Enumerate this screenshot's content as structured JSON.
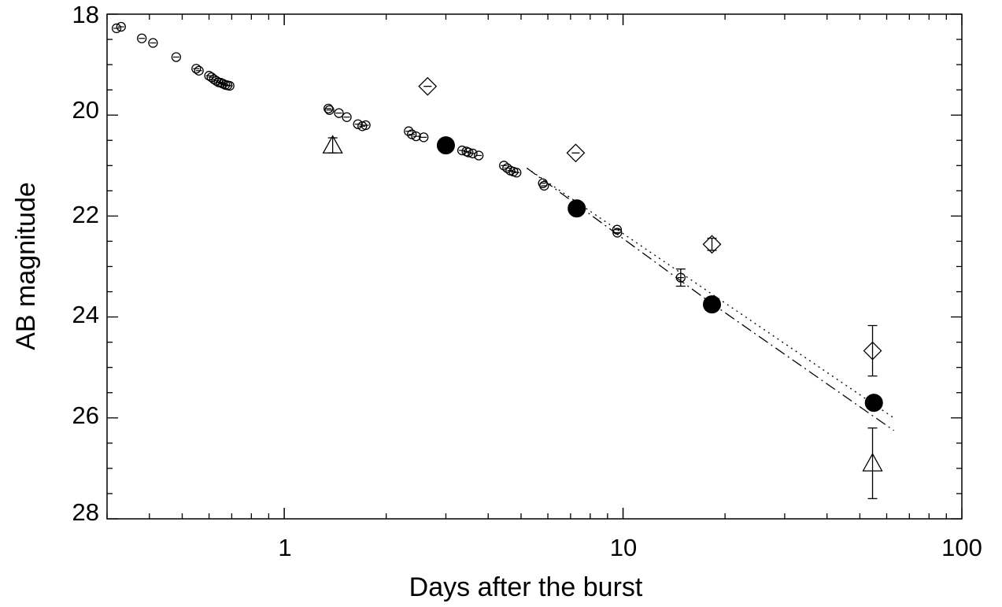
{
  "chart_data": {
    "type": "scatter",
    "title": "",
    "xlabel": "Days after the burst",
    "ylabel": "AB magnitude",
    "x_scale": "log",
    "xlim": [
      0.3,
      100
    ],
    "ylim": [
      28.0,
      18.0
    ],
    "y_inverted": true,
    "x_tick_labels": [
      "1",
      "10",
      "100"
    ],
    "y_tick_labels": [
      "18",
      "20",
      "22",
      "24",
      "26",
      "28"
    ],
    "grid": false,
    "legend": "none",
    "series": [
      {
        "marker": "small-open-circle",
        "points": [
          {
            "x": 0.32,
            "y": 18.28
          },
          {
            "x": 0.33,
            "y": 18.25
          },
          {
            "x": 0.38,
            "y": 18.48
          },
          {
            "x": 0.41,
            "y": 18.57
          },
          {
            "x": 0.48,
            "y": 18.85
          },
          {
            "x": 0.55,
            "y": 19.08
          },
          {
            "x": 0.56,
            "y": 19.12
          },
          {
            "x": 0.6,
            "y": 19.22
          },
          {
            "x": 0.61,
            "y": 19.25
          },
          {
            "x": 0.62,
            "y": 19.29
          },
          {
            "x": 0.63,
            "y": 19.32
          },
          {
            "x": 0.64,
            "y": 19.35
          },
          {
            "x": 0.65,
            "y": 19.36
          },
          {
            "x": 0.66,
            "y": 19.38
          },
          {
            "x": 0.67,
            "y": 19.4
          },
          {
            "x": 0.68,
            "y": 19.41
          },
          {
            "x": 0.69,
            "y": 19.42
          },
          {
            "x": 1.35,
            "y": 19.87
          },
          {
            "x": 1.36,
            "y": 19.9
          },
          {
            "x": 1.45,
            "y": 19.96
          },
          {
            "x": 1.53,
            "y": 20.04
          },
          {
            "x": 1.65,
            "y": 20.18
          },
          {
            "x": 1.7,
            "y": 20.22
          },
          {
            "x": 1.74,
            "y": 20.2
          },
          {
            "x": 2.33,
            "y": 20.32
          },
          {
            "x": 2.38,
            "y": 20.38
          },
          {
            "x": 2.45,
            "y": 20.42
          },
          {
            "x": 2.58,
            "y": 20.44
          },
          {
            "x": 3.35,
            "y": 20.7
          },
          {
            "x": 3.45,
            "y": 20.72
          },
          {
            "x": 3.5,
            "y": 20.74
          },
          {
            "x": 3.6,
            "y": 20.76
          },
          {
            "x": 3.75,
            "y": 20.8
          },
          {
            "x": 4.45,
            "y": 21.0
          },
          {
            "x": 4.55,
            "y": 21.05
          },
          {
            "x": 4.65,
            "y": 21.1
          },
          {
            "x": 4.75,
            "y": 21.12
          },
          {
            "x": 4.85,
            "y": 21.14
          },
          {
            "x": 5.8,
            "y": 21.35
          },
          {
            "x": 5.85,
            "y": 21.4
          },
          {
            "x": 9.6,
            "y": 22.27
          },
          {
            "x": 9.62,
            "y": 22.33
          },
          {
            "x": 14.8,
            "y": 23.22,
            "err": 0.17
          }
        ]
      },
      {
        "marker": "filled-circle",
        "points": [
          {
            "x": 3.0,
            "y": 20.6
          },
          {
            "x": 7.3,
            "y": 21.85
          },
          {
            "x": 18.3,
            "y": 23.75
          },
          {
            "x": 55.0,
            "y": 25.7
          }
        ]
      },
      {
        "marker": "open-diamond",
        "points": [
          {
            "x": 2.65,
            "y": 19.43
          },
          {
            "x": 7.25,
            "y": 20.75
          },
          {
            "x": 18.3,
            "y": 22.56,
            "err": 0.12
          },
          {
            "x": 54.5,
            "y": 24.67,
            "err": 0.5
          }
        ]
      },
      {
        "marker": "open-triangle",
        "points": [
          {
            "x": 1.39,
            "y": 20.6,
            "err": 0.15
          },
          {
            "x": 54.5,
            "y": 26.9,
            "err": 0.7
          }
        ]
      }
    ],
    "lines": [
      {
        "style": "dotted",
        "points": [
          {
            "x": 5.2,
            "y": 21.05
          },
          {
            "x": 63,
            "y": 26.0
          }
        ]
      },
      {
        "style": "dash-dot",
        "points": [
          {
            "x": 5.2,
            "y": 21.05
          },
          {
            "x": 18,
            "y": 23.7
          },
          {
            "x": 63,
            "y": 26.25
          }
        ]
      }
    ]
  }
}
